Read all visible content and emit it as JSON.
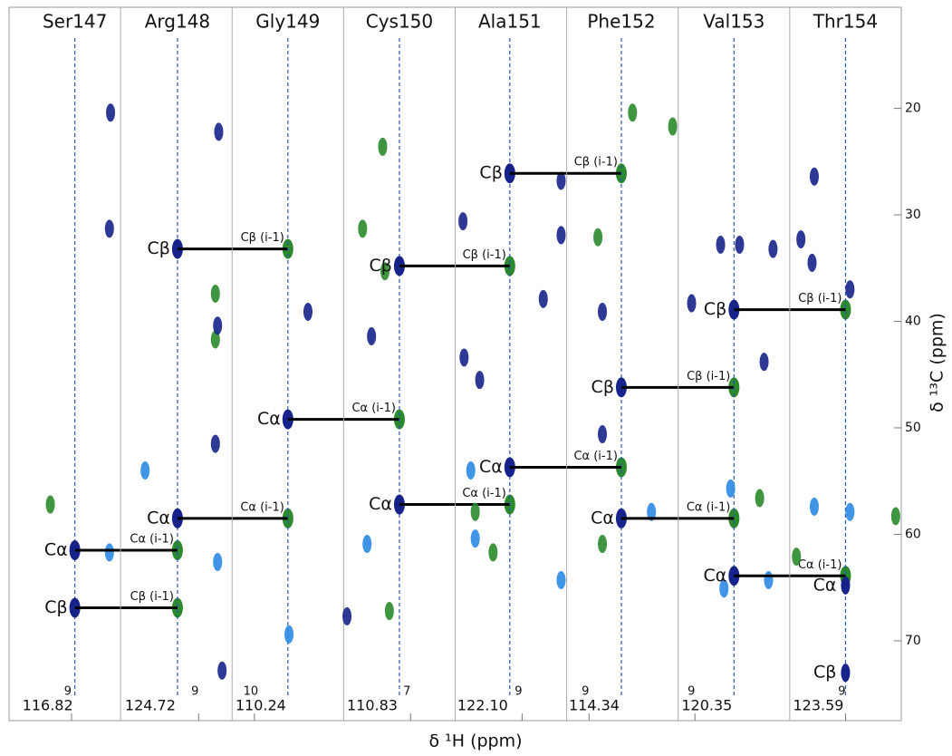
{
  "chart_data": {
    "type": "strip",
    "x_label": "δ ¹H (ppm)",
    "y_label": "δ ¹³C (ppm)",
    "ylim": [
      10.5,
      77.5
    ],
    "y_inverted": true,
    "yticks": [
      20,
      30,
      40,
      50,
      60,
      70
    ],
    "peak_colors": [
      "#17238a",
      "#2c8ae4",
      "#2b8a2b"
    ],
    "strips": [
      {
        "name": "Ser147",
        "n_label": "116.82",
        "xlim": [
          9.56,
          8.56
        ],
        "xticks": [
          9
        ],
        "h": 8.97,
        "links": [
          {
            "ppm": 61.5,
            "label": "Cα",
            "next_label": "Cα (i-1)"
          },
          {
            "ppm": 66.9,
            "label": "Cβ",
            "next_label": "Cβ (i-1)"
          }
        ],
        "peaks": [
          [
            8.65,
            20.4,
            0
          ],
          [
            8.66,
            31.3,
            0
          ],
          [
            9.19,
            57.2,
            2
          ],
          [
            8.66,
            61.7,
            1
          ]
        ]
      },
      {
        "name": "Arg148",
        "n_label": "124.72",
        "xlim": [
          9.7,
          8.7
        ],
        "xticks": [
          9
        ],
        "h": 9.19,
        "links": [
          {
            "ppm": 33.2,
            "label": "Cβ",
            "next_label": "Cβ (i-1)"
          },
          {
            "ppm": 58.5,
            "label": "Cα",
            "next_label": "Cα (i-1)"
          }
        ],
        "peaks": [
          [
            8.82,
            22.2,
            0
          ],
          [
            8.85,
            37.4,
            2
          ],
          [
            8.85,
            41.7,
            2
          ],
          [
            8.83,
            40.4,
            0
          ],
          [
            9.48,
            54.0,
            1
          ],
          [
            8.85,
            51.5,
            0
          ],
          [
            8.83,
            62.6,
            1
          ],
          [
            8.79,
            72.8,
            0
          ]
        ]
      },
      {
        "name": "Gly149",
        "n_label": "110.24",
        "xlim": [
          10.2,
          9.2
        ],
        "xticks": [
          10
        ],
        "h": 9.7,
        "links": [
          {
            "ppm": 49.2,
            "label": "Cα",
            "next_label": "Cα (i-1)"
          }
        ],
        "peaks": [
          [
            9.52,
            39.1,
            0
          ],
          [
            9.69,
            69.4,
            1
          ]
        ]
      },
      {
        "name": "Cys150",
        "n_label": "110.83",
        "xlim": [
          7.6,
          6.6
        ],
        "xticks": [
          7
        ],
        "h": 7.1,
        "links": [
          {
            "ppm": 34.8,
            "label": "Cβ",
            "next_label": "Cβ (i-1)"
          },
          {
            "ppm": 57.2,
            "label": "Cα",
            "next_label": "Cα (i-1)"
          }
        ],
        "peaks": [
          [
            7.25,
            23.6,
            2
          ],
          [
            7.43,
            31.3,
            2
          ],
          [
            7.35,
            41.4,
            0
          ],
          [
            7.39,
            60.9,
            1
          ],
          [
            7.23,
            35.3,
            2
          ],
          [
            7.19,
            67.2,
            2
          ],
          [
            7.57,
            67.7,
            0
          ]
        ]
      },
      {
        "name": "Ala151",
        "n_label": "122.10",
        "xlim": [
          9.6,
          8.6
        ],
        "xticks": [
          9
        ],
        "h": 9.11,
        "links": [
          {
            "ppm": 26.1,
            "label": "Cβ",
            "next_label": "Cβ (i-1)"
          },
          {
            "ppm": 53.7,
            "label": "Cα",
            "next_label": "Cα (i-1)"
          }
        ],
        "peaks": [
          [
            9.53,
            30.6,
            0
          ],
          [
            9.52,
            43.4,
            0
          ],
          [
            9.38,
            45.5,
            0
          ],
          [
            9.42,
            60.4,
            1
          ],
          [
            9.42,
            57.9,
            2
          ],
          [
            9.26,
            61.7,
            2
          ],
          [
            9.46,
            54.0,
            1
          ],
          [
            8.81,
            37.9,
            0
          ],
          [
            8.65,
            26.8,
            0
          ],
          [
            8.65,
            31.9,
            0
          ],
          [
            8.65,
            64.3,
            1
          ]
        ]
      },
      {
        "name": "Phe152",
        "n_label": "114.34",
        "xlim": [
          9.2,
          8.2
        ],
        "xticks": [
          9
        ],
        "h": 8.71,
        "links": [
          {
            "ppm": 46.2,
            "label": "Cβ",
            "next_label": "Cβ (i-1)"
          },
          {
            "ppm": 58.5,
            "label": "Cα",
            "next_label": "Cα (i-1)"
          }
        ],
        "peaks": [
          [
            8.88,
            39.1,
            0
          ],
          [
            8.61,
            20.4,
            2
          ],
          [
            8.25,
            21.7,
            2
          ],
          [
            8.92,
            32.1,
            2
          ],
          [
            8.88,
            50.6,
            0
          ],
          [
            8.88,
            60.9,
            2
          ],
          [
            8.44,
            57.9,
            1
          ]
        ]
      },
      {
        "name": "Val153",
        "n_label": "120.35",
        "xlim": [
          9.15,
          8.15
        ],
        "xticks": [
          9
        ],
        "h": 8.65,
        "links": [
          {
            "ppm": 38.9,
            "label": "Cβ",
            "next_label": "Cβ (i-1)"
          },
          {
            "ppm": 63.9,
            "label": "Cα",
            "next_label": "Cα (i-1)"
          }
        ],
        "peaks": [
          [
            8.77,
            32.8,
            0
          ],
          [
            8.6,
            32.8,
            0
          ],
          [
            8.3,
            33.2,
            0
          ],
          [
            8.38,
            43.8,
            0
          ],
          [
            8.42,
            56.6,
            2
          ],
          [
            8.68,
            55.7,
            1
          ],
          [
            8.74,
            65.1,
            1
          ],
          [
            8.34,
            64.3,
            1
          ],
          [
            9.03,
            38.3,
            0
          ]
        ]
      },
      {
        "name": "Thr154",
        "n_label": "123.59",
        "xlim": [
          9.5,
          8.5
        ],
        "xticks": [
          9
        ],
        "h": 9.0,
        "labels": [
          {
            "ppm": 64.8,
            "label": "Cα"
          },
          {
            "ppm": 73,
            "label": "Cβ"
          }
        ],
        "peaks": [
          [
            9.28,
            26.4,
            0
          ],
          [
            9.4,
            32.3,
            0
          ],
          [
            8.96,
            37.0,
            0
          ],
          [
            9.3,
            34.5,
            0
          ],
          [
            9.44,
            62.1,
            2
          ],
          [
            9.28,
            57.4,
            1
          ],
          [
            8.96,
            57.9,
            1
          ],
          [
            8.55,
            58.3,
            2
          ]
        ]
      }
    ]
  }
}
